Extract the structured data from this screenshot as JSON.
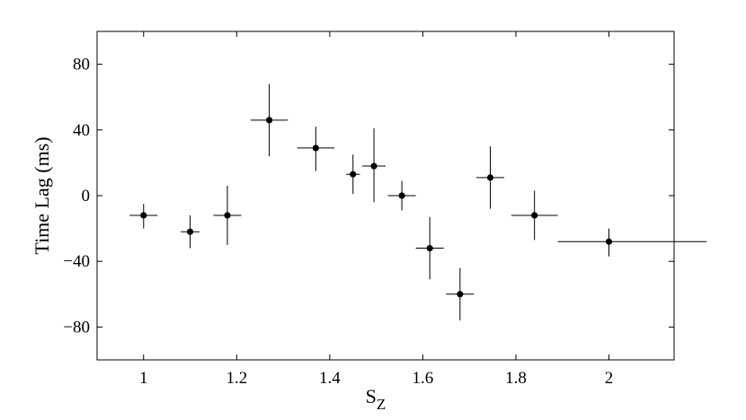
{
  "chart_data": {
    "type": "scatter",
    "xlabel": "S",
    "xlabel_sub": "Z",
    "ylabel": "Time Lag (ms)",
    "xlim": [
      0.9,
      2.14
    ],
    "ylim": [
      -100,
      100
    ],
    "x_ticks": [
      1,
      1.2,
      1.4,
      1.6,
      1.8,
      2
    ],
    "x_tick_labels": [
      "1",
      "1.2",
      "1.4",
      "1.6",
      "1.8",
      "2"
    ],
    "y_ticks": [
      80,
      40,
      0,
      -40,
      -80
    ],
    "y_tick_labels": [
      "80",
      "40",
      "0",
      "−40",
      "−80"
    ],
    "grid": false,
    "series": [
      {
        "points": [
          {
            "x": 1.0,
            "y": -12,
            "xerr": [
              0.03,
              0.03
            ],
            "yerr": [
              8,
              7
            ]
          },
          {
            "x": 1.1,
            "y": -22,
            "xerr": [
              0.02,
              0.02
            ],
            "yerr": [
              10,
              10
            ]
          },
          {
            "x": 1.18,
            "y": -12,
            "xerr": [
              0.03,
              0.03
            ],
            "yerr": [
              18,
              18
            ]
          },
          {
            "x": 1.27,
            "y": 46,
            "xerr": [
              0.04,
              0.04
            ],
            "yerr": [
              22,
              22
            ]
          },
          {
            "x": 1.37,
            "y": 29,
            "xerr": [
              0.04,
              0.04
            ],
            "yerr": [
              14,
              13
            ]
          },
          {
            "x": 1.45,
            "y": 13,
            "xerr": [
              0.015,
              0.015
            ],
            "yerr": [
              12,
              12
            ]
          },
          {
            "x": 1.495,
            "y": 18,
            "xerr": [
              0.025,
              0.025
            ],
            "yerr": [
              22,
              23
            ]
          },
          {
            "x": 1.555,
            "y": 0,
            "xerr": [
              0.03,
              0.03
            ],
            "yerr": [
              9,
              9
            ]
          },
          {
            "x": 1.615,
            "y": -32,
            "xerr": [
              0.03,
              0.03
            ],
            "yerr": [
              19,
              19
            ]
          },
          {
            "x": 1.68,
            "y": -60,
            "xerr": [
              0.03,
              0.03
            ],
            "yerr": [
              16,
              16
            ]
          },
          {
            "x": 1.745,
            "y": 11,
            "xerr": [
              0.03,
              0.03
            ],
            "yerr": [
              19,
              19
            ]
          },
          {
            "x": 1.84,
            "y": -12,
            "xerr": [
              0.05,
              0.05
            ],
            "yerr": [
              15,
              15
            ]
          },
          {
            "x": 2.0,
            "y": -28,
            "xerr": [
              0.11,
              0.21
            ],
            "yerr": [
              9,
              8
            ]
          }
        ]
      }
    ]
  }
}
